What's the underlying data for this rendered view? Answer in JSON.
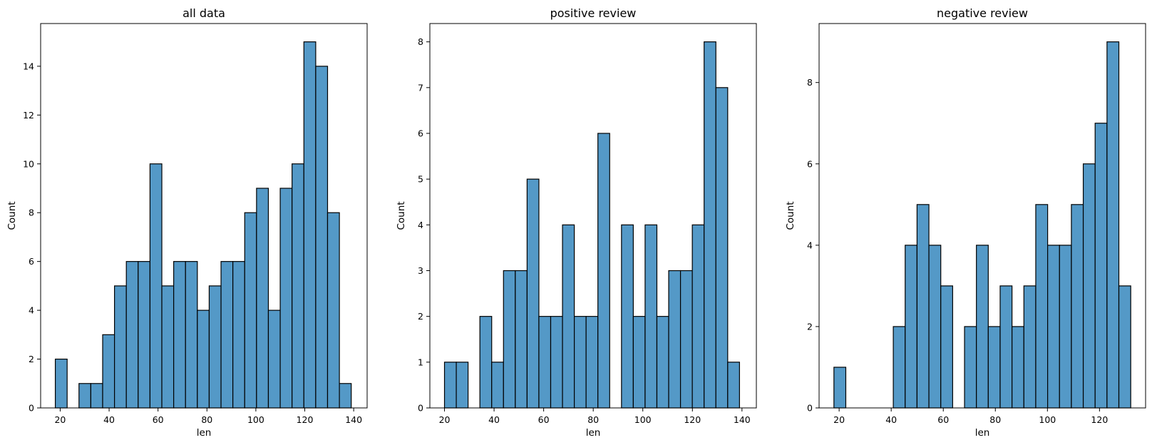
{
  "chart_data": [
    {
      "type": "bar",
      "title": "all data",
      "xlabel": "len",
      "ylabel": "Count",
      "xlim": [
        12,
        145.5
      ],
      "ylim": [
        0,
        15.75
      ],
      "xticks": [
        20,
        40,
        60,
        80,
        100,
        120,
        140
      ],
      "yticks": [
        0,
        2,
        4,
        6,
        8,
        10,
        12,
        14
      ],
      "bin_start": 18,
      "bin_width": 4.84,
      "values": [
        2,
        0,
        1,
        1,
        3,
        5,
        6,
        6,
        10,
        5,
        6,
        6,
        4,
        5,
        6,
        6,
        8,
        9,
        4,
        9,
        10,
        15,
        14,
        8,
        1
      ],
      "bar_color": "#5499c7",
      "grid": false
    },
    {
      "type": "bar",
      "title": "positive review",
      "xlabel": "len",
      "ylabel": "Count",
      "xlim": [
        14.1,
        145.8
      ],
      "ylim": [
        0,
        8.4
      ],
      "xticks": [
        20,
        40,
        60,
        80,
        100,
        120,
        140
      ],
      "yticks": [
        0,
        1,
        2,
        3,
        4,
        5,
        6,
        7,
        8
      ],
      "bin_start": 20,
      "bin_width": 4.76,
      "values": [
        1,
        1,
        0,
        2,
        1,
        3,
        3,
        5,
        2,
        2,
        4,
        2,
        2,
        6,
        0,
        4,
        2,
        4,
        2,
        3,
        3,
        4,
        8,
        7,
        1
      ],
      "bar_color": "#5499c7",
      "grid": false
    },
    {
      "type": "bar",
      "title": "negative review",
      "xlabel": "len",
      "ylabel": "Count",
      "xlim": [
        12.3,
        137.7
      ],
      "ylim": [
        0,
        9.45
      ],
      "xticks": [
        20,
        40,
        60,
        80,
        100,
        120
      ],
      "yticks": [
        0,
        2,
        4,
        6,
        8
      ],
      "bin_start": 18,
      "bin_width": 4.56,
      "values": [
        1,
        0,
        0,
        0,
        0,
        2,
        4,
        5,
        4,
        3,
        0,
        2,
        4,
        2,
        3,
        2,
        3,
        5,
        4,
        4,
        5,
        6,
        7,
        9,
        3
      ],
      "bar_color": "#5499c7",
      "grid": false
    }
  ]
}
